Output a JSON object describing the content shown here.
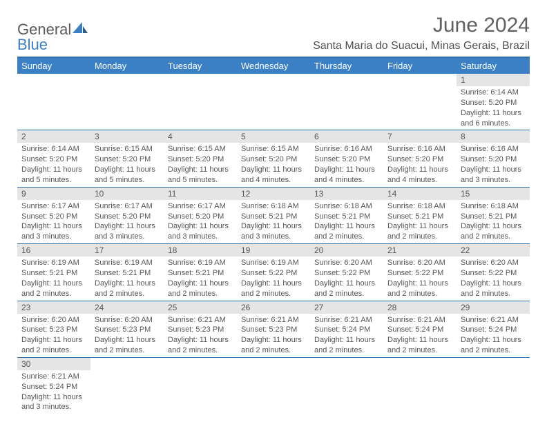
{
  "logo": {
    "text1": "General",
    "text2": "Blue"
  },
  "title": "June 2024",
  "location": "Santa Maria do Suacui, Minas Gerais, Brazil",
  "colors": {
    "header_bg": "#3b7fc4",
    "header_text": "#ffffff",
    "divider": "#3370a8",
    "daynum_bg": "#e5e5e5",
    "text": "#555555",
    "logo_accent": "#3b7fc4"
  },
  "days_of_week": [
    "Sunday",
    "Monday",
    "Tuesday",
    "Wednesday",
    "Thursday",
    "Friday",
    "Saturday"
  ],
  "weeks": [
    [
      null,
      null,
      null,
      null,
      null,
      null,
      {
        "n": "1",
        "sunrise": "6:14 AM",
        "sunset": "5:20 PM",
        "daylight": "11 hours and 6 minutes."
      }
    ],
    [
      {
        "n": "2",
        "sunrise": "6:14 AM",
        "sunset": "5:20 PM",
        "daylight": "11 hours and 5 minutes."
      },
      {
        "n": "3",
        "sunrise": "6:15 AM",
        "sunset": "5:20 PM",
        "daylight": "11 hours and 5 minutes."
      },
      {
        "n": "4",
        "sunrise": "6:15 AM",
        "sunset": "5:20 PM",
        "daylight": "11 hours and 5 minutes."
      },
      {
        "n": "5",
        "sunrise": "6:15 AM",
        "sunset": "5:20 PM",
        "daylight": "11 hours and 4 minutes."
      },
      {
        "n": "6",
        "sunrise": "6:16 AM",
        "sunset": "5:20 PM",
        "daylight": "11 hours and 4 minutes."
      },
      {
        "n": "7",
        "sunrise": "6:16 AM",
        "sunset": "5:20 PM",
        "daylight": "11 hours and 4 minutes."
      },
      {
        "n": "8",
        "sunrise": "6:16 AM",
        "sunset": "5:20 PM",
        "daylight": "11 hours and 3 minutes."
      }
    ],
    [
      {
        "n": "9",
        "sunrise": "6:17 AM",
        "sunset": "5:20 PM",
        "daylight": "11 hours and 3 minutes."
      },
      {
        "n": "10",
        "sunrise": "6:17 AM",
        "sunset": "5:20 PM",
        "daylight": "11 hours and 3 minutes."
      },
      {
        "n": "11",
        "sunrise": "6:17 AM",
        "sunset": "5:20 PM",
        "daylight": "11 hours and 3 minutes."
      },
      {
        "n": "12",
        "sunrise": "6:18 AM",
        "sunset": "5:21 PM",
        "daylight": "11 hours and 3 minutes."
      },
      {
        "n": "13",
        "sunrise": "6:18 AM",
        "sunset": "5:21 PM",
        "daylight": "11 hours and 2 minutes."
      },
      {
        "n": "14",
        "sunrise": "6:18 AM",
        "sunset": "5:21 PM",
        "daylight": "11 hours and 2 minutes."
      },
      {
        "n": "15",
        "sunrise": "6:18 AM",
        "sunset": "5:21 PM",
        "daylight": "11 hours and 2 minutes."
      }
    ],
    [
      {
        "n": "16",
        "sunrise": "6:19 AM",
        "sunset": "5:21 PM",
        "daylight": "11 hours and 2 minutes."
      },
      {
        "n": "17",
        "sunrise": "6:19 AM",
        "sunset": "5:21 PM",
        "daylight": "11 hours and 2 minutes."
      },
      {
        "n": "18",
        "sunrise": "6:19 AM",
        "sunset": "5:21 PM",
        "daylight": "11 hours and 2 minutes."
      },
      {
        "n": "19",
        "sunrise": "6:19 AM",
        "sunset": "5:22 PM",
        "daylight": "11 hours and 2 minutes."
      },
      {
        "n": "20",
        "sunrise": "6:20 AM",
        "sunset": "5:22 PM",
        "daylight": "11 hours and 2 minutes."
      },
      {
        "n": "21",
        "sunrise": "6:20 AM",
        "sunset": "5:22 PM",
        "daylight": "11 hours and 2 minutes."
      },
      {
        "n": "22",
        "sunrise": "6:20 AM",
        "sunset": "5:22 PM",
        "daylight": "11 hours and 2 minutes."
      }
    ],
    [
      {
        "n": "23",
        "sunrise": "6:20 AM",
        "sunset": "5:23 PM",
        "daylight": "11 hours and 2 minutes."
      },
      {
        "n": "24",
        "sunrise": "6:20 AM",
        "sunset": "5:23 PM",
        "daylight": "11 hours and 2 minutes."
      },
      {
        "n": "25",
        "sunrise": "6:21 AM",
        "sunset": "5:23 PM",
        "daylight": "11 hours and 2 minutes."
      },
      {
        "n": "26",
        "sunrise": "6:21 AM",
        "sunset": "5:23 PM",
        "daylight": "11 hours and 2 minutes."
      },
      {
        "n": "27",
        "sunrise": "6:21 AM",
        "sunset": "5:24 PM",
        "daylight": "11 hours and 2 minutes."
      },
      {
        "n": "28",
        "sunrise": "6:21 AM",
        "sunset": "5:24 PM",
        "daylight": "11 hours and 2 minutes."
      },
      {
        "n": "29",
        "sunrise": "6:21 AM",
        "sunset": "5:24 PM",
        "daylight": "11 hours and 2 minutes."
      }
    ],
    [
      {
        "n": "30",
        "sunrise": "6:21 AM",
        "sunset": "5:24 PM",
        "daylight": "11 hours and 3 minutes."
      },
      null,
      null,
      null,
      null,
      null,
      null
    ]
  ],
  "labels": {
    "sunrise": "Sunrise:",
    "sunset": "Sunset:",
    "daylight": "Daylight:"
  }
}
